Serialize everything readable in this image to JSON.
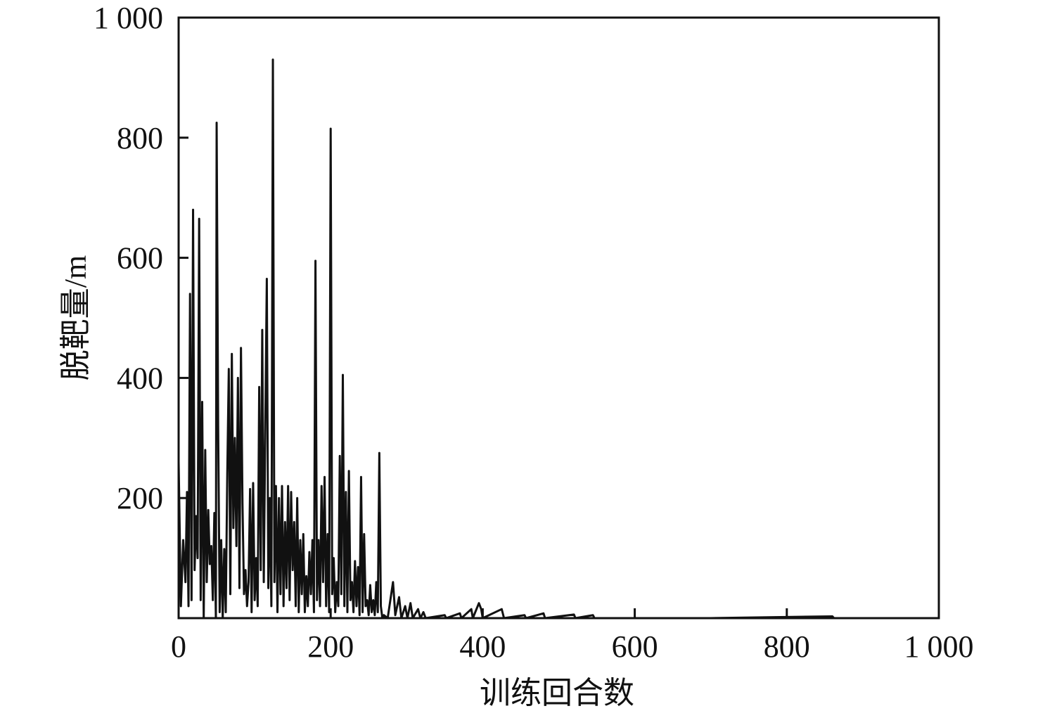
{
  "chart_data": {
    "type": "line",
    "x_label": "训练回合数",
    "y_label": "脱靶量/m",
    "xlim": [
      0,
      1000
    ],
    "ylim": [
      0,
      1000
    ],
    "xticks": [
      0,
      200,
      400,
      600,
      800,
      {
        "value": 1000,
        "label": "1 000"
      }
    ],
    "yticks": [
      200,
      400,
      600,
      800,
      {
        "value": 1000,
        "label": "1 000"
      }
    ],
    "series": [
      {
        "color": "#111111",
        "x": [
          0,
          3,
          6,
          9,
          11,
          13,
          15,
          17,
          19,
          21,
          23,
          25,
          27,
          29,
          31,
          33,
          35,
          37,
          39,
          41,
          43,
          45,
          47,
          49,
          50,
          52,
          54,
          56,
          58,
          60,
          62,
          64,
          66,
          68,
          70,
          72,
          74,
          76,
          78,
          80,
          82,
          84,
          86,
          88,
          90,
          92,
          94,
          96,
          98,
          100,
          102,
          104,
          106,
          108,
          110,
          112,
          114,
          116,
          118,
          120,
          122,
          124,
          126,
          128,
          130,
          132,
          134,
          136,
          138,
          140,
          142,
          144,
          146,
          148,
          150,
          152,
          154,
          156,
          158,
          160,
          162,
          164,
          166,
          168,
          170,
          172,
          174,
          176,
          178,
          180,
          182,
          184,
          186,
          188,
          190,
          192,
          194,
          196,
          198,
          200,
          202,
          204,
          206,
          208,
          210,
          212,
          214,
          216,
          218,
          220,
          222,
          224,
          226,
          228,
          230,
          232,
          234,
          236,
          238,
          240,
          242,
          244,
          246,
          248,
          250,
          252,
          254,
          256,
          258,
          260,
          262,
          264,
          266,
          268,
          270,
          275,
          282,
          285,
          290,
          293,
          298,
          301,
          305,
          308,
          315,
          318,
          322,
          325,
          350,
          352,
          370,
          372,
          385,
          387,
          395,
          398,
          400,
          425,
          428,
          455,
          457,
          480,
          482,
          520,
          522,
          545,
          547,
          600,
          700,
          860,
          862,
          1000
        ],
        "values": [
          260,
          20,
          130,
          60,
          210,
          20,
          540,
          30,
          680,
          80,
          170,
          100,
          665,
          30,
          360,
          0,
          280,
          60,
          180,
          90,
          120,
          30,
          175,
          0,
          825,
          320,
          10,
          130,
          0,
          115,
          10,
          240,
          415,
          40,
          440,
          150,
          300,
          120,
          400,
          50,
          450,
          190,
          40,
          80,
          20,
          60,
          215,
          10,
          225,
          30,
          100,
          20,
          385,
          80,
          480,
          60,
          320,
          565,
          50,
          200,
          20,
          930,
          60,
          220,
          10,
          200,
          40,
          220,
          20,
          160,
          50,
          220,
          30,
          210,
          80,
          160,
          20,
          200,
          10,
          130,
          40,
          140,
          10,
          70,
          20,
          110,
          40,
          130,
          10,
          595,
          30,
          130,
          20,
          220,
          60,
          235,
          20,
          140,
          10,
          815,
          40,
          100,
          10,
          60,
          20,
          270,
          40,
          405,
          20,
          210,
          10,
          245,
          30,
          60,
          10,
          95,
          20,
          85,
          5,
          235,
          10,
          140,
          20,
          30,
          5,
          55,
          10,
          30,
          5,
          60,
          10,
          275,
          20,
          0,
          5,
          0,
          60,
          5,
          35,
          0,
          20,
          0,
          25,
          0,
          15,
          0,
          10,
          0,
          5,
          0,
          8,
          0,
          15,
          0,
          25,
          15,
          0,
          15,
          0,
          5,
          0,
          8,
          0,
          6,
          0,
          5,
          0,
          0,
          0,
          3,
          0,
          0
        ]
      }
    ]
  }
}
